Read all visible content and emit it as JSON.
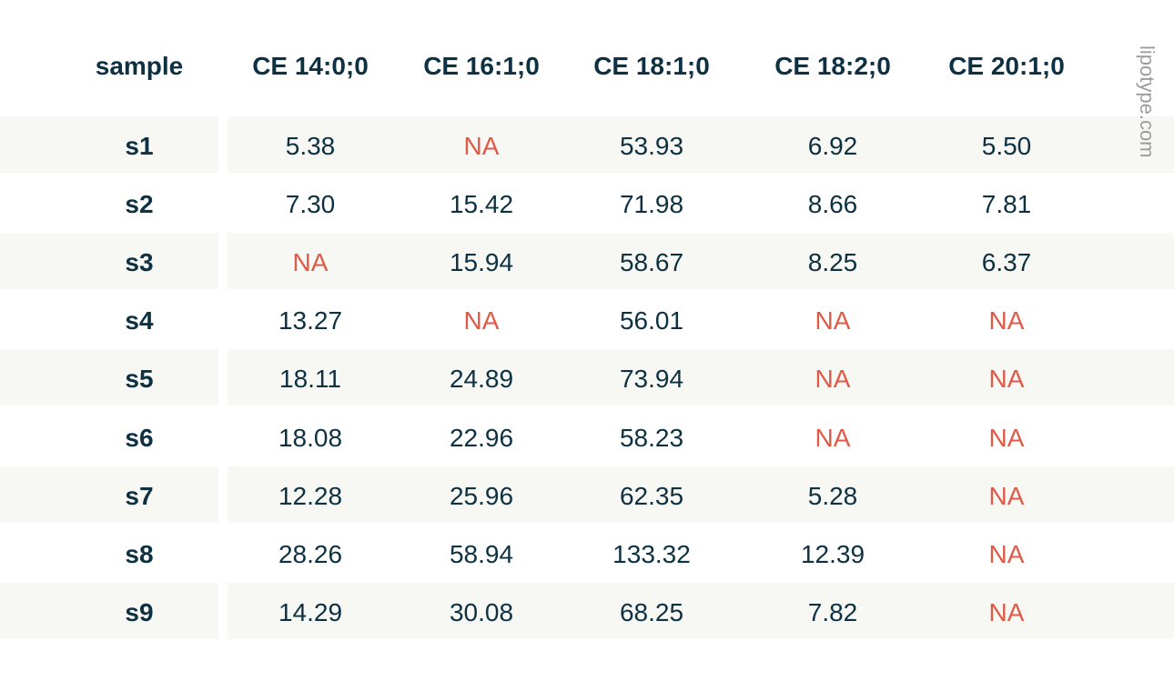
{
  "watermark": "lipotype.com",
  "colors": {
    "text": "#0d3142",
    "na": "#e05a48",
    "stripe": "#f7f7f3",
    "watermark": "#9c9c9c"
  },
  "chart_data": {
    "type": "table",
    "columns": [
      "sample",
      "CE 14:0;0",
      "CE 16:1;0",
      "CE 18:1;0",
      "CE 18:2;0",
      "CE 20:1;0"
    ],
    "rows": [
      [
        "s1",
        "5.38",
        "NA",
        "53.93",
        "6.92",
        "5.50"
      ],
      [
        "s2",
        "7.30",
        "15.42",
        "71.98",
        "8.66",
        "7.81"
      ],
      [
        "s3",
        "NA",
        "15.94",
        "58.67",
        "8.25",
        "6.37"
      ],
      [
        "s4",
        "13.27",
        "NA",
        "56.01",
        "NA",
        "NA"
      ],
      [
        "s5",
        "18.11",
        "24.89",
        "73.94",
        "NA",
        "NA"
      ],
      [
        "s6",
        "18.08",
        "22.96",
        "58.23",
        "NA",
        "NA"
      ],
      [
        "s7",
        "12.28",
        "25.96",
        "62.35",
        "5.28",
        "NA"
      ],
      [
        "s8",
        "28.26",
        "58.94",
        "133.32",
        "12.39",
        "NA"
      ],
      [
        "s9",
        "14.29",
        "30.08",
        "68.25",
        "7.82",
        "NA"
      ]
    ]
  }
}
